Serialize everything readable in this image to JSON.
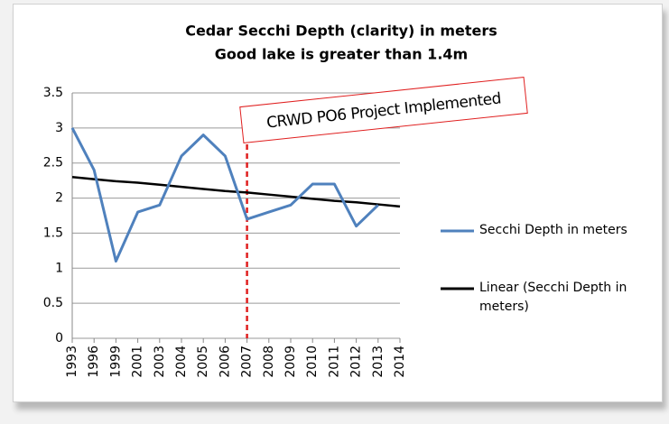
{
  "chart_data": {
    "type": "line",
    "title": "Cedar Secchi Depth (clarity) in meters",
    "subtitle": "Good lake is greater than 1.4m",
    "categories": [
      "1993",
      "1996",
      "1999",
      "2001",
      "2003",
      "2004",
      "2005",
      "2006",
      "2007",
      "2008",
      "2009",
      "2010",
      "2011",
      "2012",
      "2013",
      "2014"
    ],
    "series": [
      {
        "name": "Secchi Depth in meters",
        "color": "#4f81bd",
        "values": [
          3.0,
          2.4,
          1.1,
          1.8,
          1.9,
          2.6,
          2.9,
          2.6,
          1.7,
          1.8,
          1.9,
          2.2,
          2.2,
          1.6,
          1.9,
          null
        ]
      },
      {
        "name": "Linear (Secchi Depth in meters)",
        "color": "#000000",
        "values": [
          2.3,
          2.27,
          2.24,
          2.22,
          2.19,
          2.16,
          2.13,
          2.1,
          2.08,
          2.05,
          2.02,
          1.99,
          1.96,
          1.94,
          1.91,
          1.88
        ]
      }
    ],
    "ylim": [
      0,
      3.5
    ],
    "yticks": [
      0,
      0.5,
      1,
      1.5,
      2,
      2.5,
      3,
      3.5
    ],
    "grid": true,
    "legend": "right",
    "annotation": {
      "text": "CRWD PO6 Project Implemented",
      "category": "2007",
      "color": "#e02020"
    }
  }
}
